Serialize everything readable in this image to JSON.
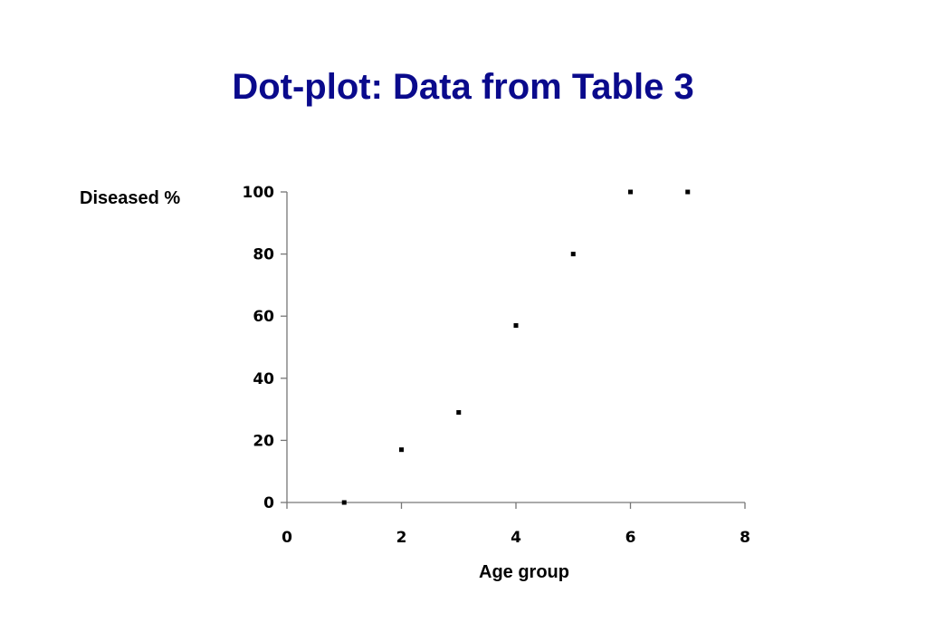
{
  "title": "Dot-plot: Data from Table 3",
  "chart_data": {
    "type": "scatter",
    "title": "Dot-plot: Data from Table 3",
    "xlabel": "Age group",
    "ylabel": "Diseased %",
    "xlim": [
      0,
      8
    ],
    "ylim": [
      0,
      100
    ],
    "xticks": [
      0,
      2,
      4,
      6,
      8
    ],
    "yticks": [
      0,
      20,
      40,
      60,
      80,
      100
    ],
    "grid": false,
    "legend": "none",
    "marker_color": "#000000",
    "points": [
      {
        "x": 1,
        "y": 0
      },
      {
        "x": 2,
        "y": 17
      },
      {
        "x": 3,
        "y": 29
      },
      {
        "x": 4,
        "y": 57
      },
      {
        "x": 5,
        "y": 80
      },
      {
        "x": 6,
        "y": 100
      },
      {
        "x": 7,
        "y": 100
      }
    ]
  }
}
